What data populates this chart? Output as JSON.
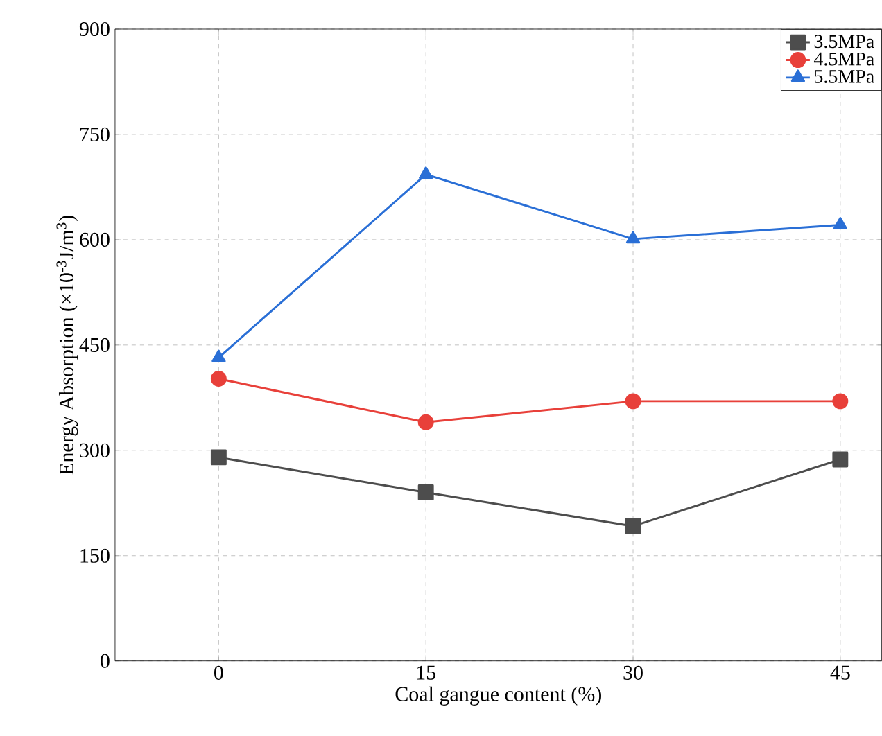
{
  "chart_data": {
    "type": "line",
    "xlabel": "Coal gangue content (%)",
    "ylabel": "Energy Absorption (×10$^{-3}$J/m$^{3}$)",
    "x": [
      0,
      15,
      30,
      45
    ],
    "series": [
      {
        "name": "3.5MPa",
        "color": "#4d4d4d",
        "marker": "square",
        "values": [
          290,
          240,
          192,
          287
        ]
      },
      {
        "name": "4.5MPa",
        "color": "#e8403a",
        "marker": "circle",
        "values": [
          402,
          340,
          370,
          370
        ]
      },
      {
        "name": "5.5MPa",
        "color": "#2a6fd6",
        "marker": "triangle",
        "values": [
          432,
          693,
          601,
          621
        ]
      }
    ],
    "xlim": [
      -7.5,
      48
    ],
    "xticks": [
      0,
      15,
      30,
      45
    ],
    "ylim": [
      0,
      900
    ],
    "yticks": [
      0,
      150,
      300,
      450,
      600,
      750,
      900
    ],
    "grid": true,
    "legend": "top right",
    "line_style": "solid"
  }
}
